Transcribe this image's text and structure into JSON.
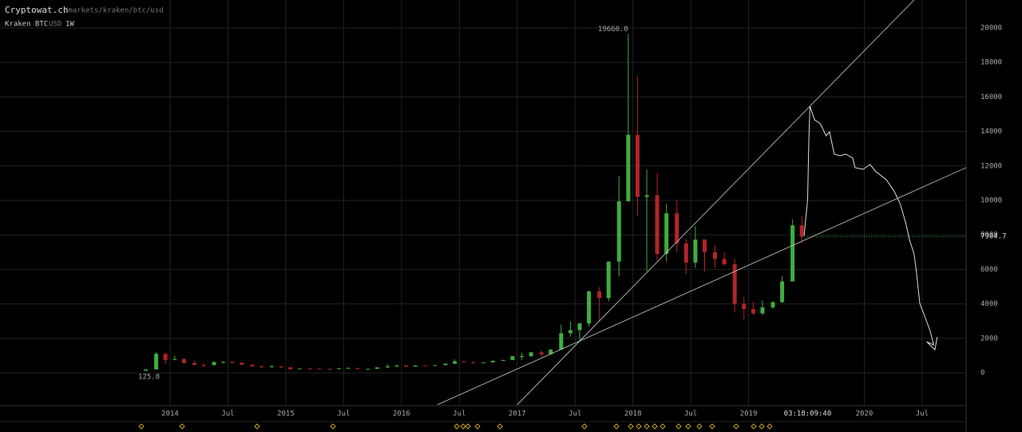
{
  "header": {
    "site": "Cryptowat.ch",
    "path": "/markets/kraken/btc/usd",
    "exchange": "Kraken BTC",
    "quote": "USD",
    "period": "1W"
  },
  "chart_data": {
    "type": "candlestick",
    "up_color": "#3fae3f",
    "down_color": "#b3242a",
    "xlim": [
      2012.53,
      2020.88
    ],
    "ylim": [
      -1900,
      21620
    ],
    "xticks": [
      2014,
      {
        "value": 2014.5,
        "label": "Jul"
      },
      2015,
      {
        "value": 2015.5,
        "label": "Jul"
      },
      2016,
      {
        "value": 2016.5,
        "label": "Jul"
      },
      2017,
      {
        "value": 2017.5,
        "label": "Jul"
      },
      2018,
      {
        "value": 2018.5,
        "label": "Jul"
      },
      2019,
      2020,
      {
        "value": 2020.5,
        "label": "Jul"
      }
    ],
    "yticks": [
      0,
      2000,
      4000,
      6000,
      8000,
      10000,
      12000,
      14000,
      16000,
      18000,
      20000
    ],
    "grid": true,
    "countdown": "03:18:09:40",
    "countdown_x": 2019.51,
    "high_label": "19660.0",
    "last_price": 7904.7,
    "candles": {
      "x": [
        2013.79,
        2013.88,
        2013.96,
        2014.04,
        2014.12,
        2014.21,
        2014.29,
        2014.38,
        2014.46,
        2014.54,
        2014.62,
        2014.71,
        2014.79,
        2014.88,
        2014.96,
        2015.04,
        2015.12,
        2015.21,
        2015.29,
        2015.38,
        2015.46,
        2015.54,
        2015.62,
        2015.71,
        2015.79,
        2015.88,
        2015.96,
        2016.04,
        2016.12,
        2016.21,
        2016.29,
        2016.38,
        2016.46,
        2016.54,
        2016.62,
        2016.71,
        2016.79,
        2016.88,
        2016.96,
        2017.04,
        2017.12,
        2017.21,
        2017.29,
        2017.38,
        2017.46,
        2017.54,
        2017.62,
        2017.71,
        2017.79,
        2017.88,
        2017.96,
        2018.04,
        2018.12,
        2018.21,
        2018.29,
        2018.38,
        2018.46,
        2018.54,
        2018.62,
        2018.71,
        2018.79,
        2018.88,
        2018.96,
        2019.04,
        2019.12,
        2019.21,
        2019.29,
        2019.38,
        2019.46
      ],
      "open": [
        125.8,
        200,
        1100,
        750,
        800,
        570,
        460,
        450,
        630,
        640,
        590,
        480,
        385,
        340,
        375,
        320,
        220,
        255,
        245,
        235,
        230,
        265,
        285,
        230,
        236,
        315,
        375,
        430,
        370,
        435,
        415,
        450,
        530,
        670,
        625,
        575,
        610,
        700,
        745,
        965,
        970,
        1190,
        1080,
        1350,
        2300,
        2480,
        2870,
        4730,
        4340,
        6450,
        9950,
        13800,
        10200,
        10300,
        6900,
        9250,
        7500,
        6400,
        7730,
        7000,
        6600,
        6300,
        4000,
        3700,
        3450,
        3800,
        4100,
        5300,
        8550
      ],
      "high": [
        210,
        1200,
        1150,
        1000,
        850,
        700,
        540,
        640,
        680,
        660,
        600,
        500,
        420,
        450,
        390,
        320,
        260,
        300,
        260,
        245,
        270,
        320,
        285,
        245,
        330,
        500,
        465,
        465,
        445,
        440,
        465,
        545,
        780,
        700,
        630,
        615,
        720,
        760,
        980,
        1160,
        1200,
        1300,
        1380,
        2800,
        2980,
        2900,
        4750,
        4980,
        6480,
        11400,
        19660,
        17200,
        11800,
        11600,
        9800,
        10000,
        7750,
        8500,
        7740,
        7400,
        7000,
        6600,
        4400,
        4100,
        4200,
        4150,
        5600,
        8900,
        9100
      ],
      "low": [
        125.8,
        200,
        500,
        740,
        550,
        440,
        350,
        430,
        560,
        570,
        450,
        360,
        275,
        320,
        310,
        160,
        210,
        235,
        215,
        225,
        215,
        255,
        200,
        225,
        235,
        305,
        345,
        350,
        365,
        395,
        415,
        440,
        525,
        615,
        530,
        570,
        605,
        680,
        740,
        750,
        920,
        890,
        1080,
        1350,
        2100,
        1800,
        2700,
        2980,
        4150,
        5600,
        10700,
        9100,
        5900,
        6500,
        6450,
        7000,
        5750,
        6100,
        5880,
        6100,
        6200,
        3500,
        3100,
        3350,
        3350,
        3700,
        4050,
        5300,
        7500
      ],
      "close": [
        200,
        1100,
        750,
        800,
        570,
        460,
        450,
        630,
        640,
        590,
        480,
        385,
        340,
        375,
        320,
        220,
        255,
        245,
        235,
        230,
        265,
        285,
        230,
        236,
        315,
        375,
        430,
        370,
        435,
        415,
        450,
        530,
        670,
        625,
        575,
        610,
        700,
        745,
        965,
        970,
        1190,
        1080,
        1350,
        2300,
        2480,
        2870,
        4730,
        4340,
        6450,
        9950,
        13800,
        10200,
        10300,
        6900,
        9250,
        7500,
        6400,
        7730,
        7000,
        6600,
        6300,
        4000,
        3700,
        3450,
        3800,
        4100,
        5300,
        8550,
        7904.7
      ]
    },
    "trendlines": [
      {
        "x": [
          2017.0,
          2020.43
        ],
        "y": [
          -1850,
          21620
        ]
      },
      {
        "x": [
          2016.31,
          2020.88
        ],
        "y": [
          -1850,
          11900
        ]
      }
    ],
    "drawing": {
      "x": [
        2019.48,
        2019.51,
        2019.52,
        2019.53,
        2019.57,
        2019.62,
        2019.67,
        2019.7,
        2019.74,
        2019.79,
        2019.84,
        2019.9,
        2019.92,
        2019.99,
        2020.05,
        2020.1,
        2020.19,
        2020.26,
        2020.31,
        2020.36,
        2020.39,
        2020.43,
        2020.45,
        2020.48,
        2020.52,
        2020.57,
        2020.6,
        2020.54,
        2020.61,
        2020.63
      ],
      "y": [
        7963,
        10046,
        13287,
        15463,
        14676,
        14444,
        13750,
        13981,
        12685,
        12593,
        12685,
        12454,
        11898,
        11806,
        12083,
        11667,
        11204,
        10509,
        9815,
        8657,
        7731,
        6898,
        5880,
        4028,
        3333,
        2407,
        1620,
        1806,
        1343,
        2083
      ]
    }
  }
}
